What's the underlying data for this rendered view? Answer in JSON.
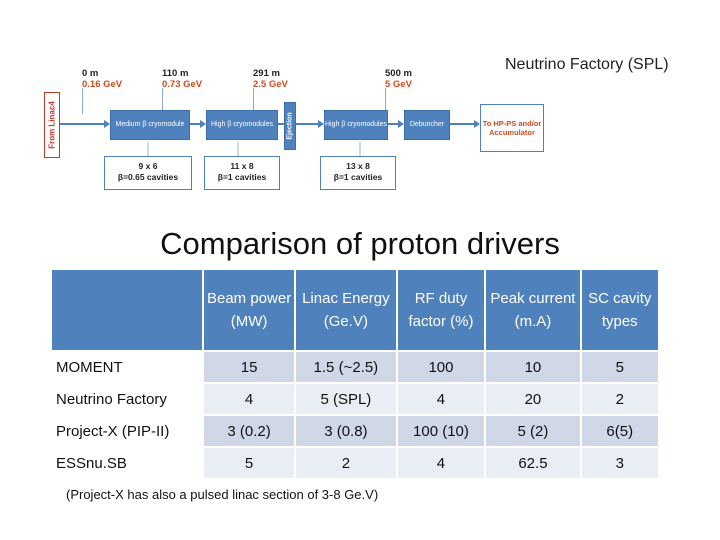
{
  "caption": "Neutrino Factory (SPL)",
  "schematic": {
    "milestones": [
      {
        "m": "0 m",
        "e": "0.16 GeV"
      },
      {
        "m": "110 m",
        "e": "0.73 GeV"
      },
      {
        "m": "291 m",
        "e": "2.5 GeV"
      },
      {
        "m": "500 m",
        "e": "5 GeV"
      }
    ],
    "from_linac": "From Linac4",
    "blocks": [
      "Medium β cryomodule",
      "High β cryomodules",
      "Ejection",
      "High β cryomodules",
      "Debuncher"
    ],
    "output": "To HP-PS and/or Accumulator",
    "cavities": [
      {
        "count": "9 x 6",
        "type": "β=0.65 cavities"
      },
      {
        "count": "11 x 8",
        "type": "β=1 cavities"
      },
      {
        "count": "13 x 8",
        "type": "β=1 cavities"
      }
    ]
  },
  "title": "Comparison of proton drivers",
  "table": {
    "headers": [
      "Beam power (MW)",
      "Linac Energy (Ge.V)",
      "RF duty factor (%)",
      "Peak current (m.A)",
      "SC cavity types"
    ],
    "rows": [
      {
        "name": "MOMENT",
        "values": [
          "15",
          "1.5 (~2.5)",
          "100",
          "10",
          "5"
        ]
      },
      {
        "name": "Neutrino Factory",
        "values": [
          "4",
          "5 (SPL)",
          "4",
          "20",
          "2"
        ]
      },
      {
        "name": "Project-X (PIP-II)",
        "values": [
          "3 (0.2)",
          "3 (0.8)",
          "100 (10)",
          "5 (2)",
          "6(5)"
        ]
      },
      {
        "name": "ESSnu.SB",
        "values": [
          "5",
          "2",
          "4",
          "62.5",
          "3"
        ]
      }
    ]
  },
  "footnote": "(Project-X has also a pulsed linac section of 3-8 Ge.V)"
}
